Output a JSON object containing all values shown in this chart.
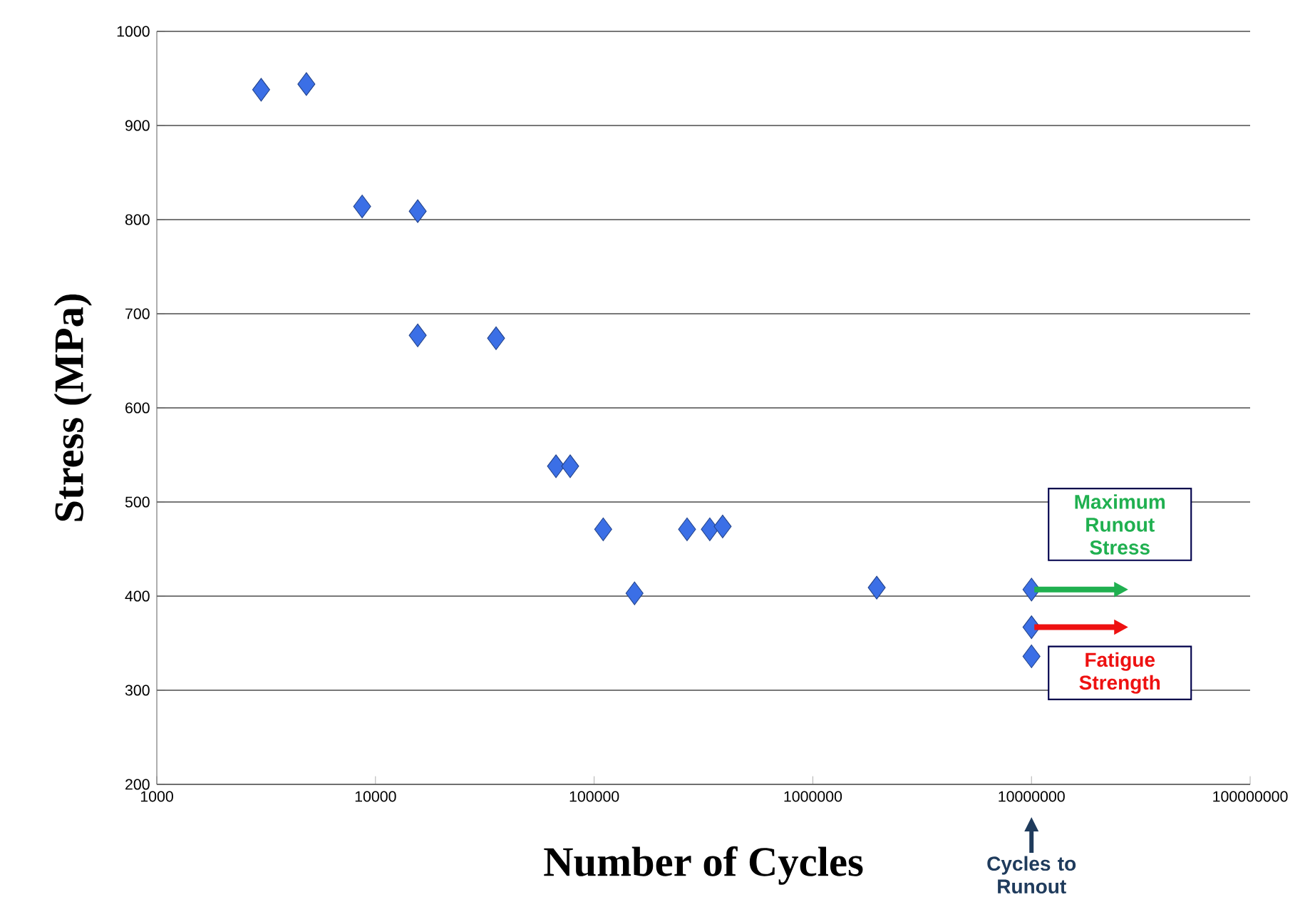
{
  "chart_data": {
    "type": "scatter",
    "xlabel": "Number of Cycles",
    "ylabel": "Stress (MPa)",
    "series": [
      {
        "color": "#3b6fe6",
        "marker": "diamond",
        "x": [
          3000,
          4830,
          8690,
          15600,
          15600,
          35600,
          66900,
          77700,
          110000,
          153000,
          266000,
          338000,
          387000,
          1960000,
          10000000,
          10000000,
          10000000
        ],
        "values": [
          938,
          944,
          814,
          809,
          677,
          674,
          538,
          538,
          471,
          403,
          471,
          471,
          474,
          409,
          407,
          367,
          336
        ]
      }
    ],
    "log": "x",
    "grid": "y",
    "xlim": [
      1000,
      100000000
    ],
    "ylim": [
      200,
      1000
    ],
    "xticks": [
      1000,
      10000,
      100000,
      1000000,
      10000000,
      100000000
    ],
    "yticks": [
      200,
      300,
      400,
      500,
      600,
      700,
      800,
      900,
      1000
    ],
    "annotations": [
      {
        "text": "Maximum Runout Stress",
        "x": 10000000,
        "y": 407
      },
      {
        "text": "Fatigue Strength",
        "x": 10000000,
        "y": 367
      },
      "Cycles to Runout"
    ]
  }
}
